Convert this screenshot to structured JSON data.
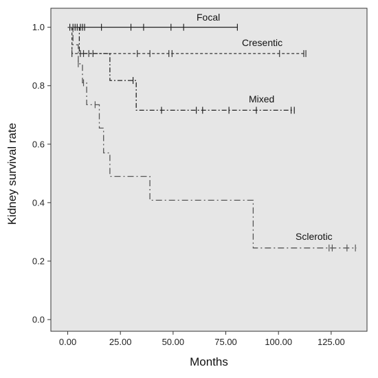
{
  "chart_data": {
    "type": "line",
    "xlabel": "Months",
    "ylabel": "Kidney survival rate",
    "xlim": [
      -8,
      142
    ],
    "ylim": [
      -0.04,
      1.065
    ],
    "xticks": [
      0,
      25,
      50,
      75,
      100,
      125
    ],
    "xtick_labels": [
      "0.00",
      "25.00",
      "50.00",
      "75.00",
      "100.00",
      "125.00"
    ],
    "yticks": [
      0,
      0.2,
      0.4,
      0.6,
      0.8,
      1.0
    ],
    "ytick_labels": [
      "0.0",
      "0.2",
      "0.4",
      "0.6",
      "0.8",
      "1.0"
    ],
    "grid": false,
    "background_color": "#e6e6e6",
    "series": [
      {
        "name": "Focal",
        "color": "#222222",
        "dash": "none",
        "steps": [
          [
            0,
            1.0
          ],
          [
            80.5,
            1.0
          ]
        ],
        "censored": [
          1,
          2.5,
          3.5,
          4.5,
          6,
          7,
          8,
          16,
          30,
          36,
          49,
          55,
          80.5
        ],
        "censored_y": 1.0
      },
      {
        "name": "Cresentic",
        "color": "#333333",
        "dash": "4,3",
        "steps": [
          [
            0,
            1.0
          ],
          [
            2,
            1.0
          ],
          [
            2,
            0.91
          ],
          [
            113,
            0.91
          ]
        ],
        "censored": [
          2,
          6,
          7.5,
          10,
          12,
          33,
          39,
          48,
          49.5,
          100.5,
          112,
          113
        ],
        "censored_y": 0.91
      },
      {
        "name": "Mixed",
        "color": "#222222",
        "dash": "7,3,2,3",
        "steps": [
          [
            0,
            1.0
          ],
          [
            5.5,
            1.0
          ],
          [
            5.5,
            0.91
          ],
          [
            20,
            0.91
          ],
          [
            20,
            0.818
          ],
          [
            32.5,
            0.818
          ],
          [
            32.5,
            0.716
          ],
          [
            107.5,
            0.716
          ]
        ],
        "censored": [
          31,
          44.5,
          61,
          64,
          76.5,
          89.5,
          106,
          107.5
        ],
        "censored_y_by_index": [
          0.818,
          0.716,
          0.716,
          0.716,
          0.716,
          0.716,
          0.716,
          0.716
        ]
      },
      {
        "name": "Sclerotic",
        "color": "#555555",
        "dash": "9,4,2,4",
        "steps": [
          [
            0,
            1.0
          ],
          [
            2.5,
            1.0
          ],
          [
            2.5,
            0.94
          ],
          [
            5,
            0.94
          ],
          [
            5,
            0.875
          ],
          [
            7,
            0.875
          ],
          [
            7,
            0.81
          ],
          [
            9,
            0.81
          ],
          [
            9,
            0.735
          ],
          [
            15,
            0.735
          ],
          [
            15,
            0.655
          ],
          [
            17,
            0.655
          ],
          [
            17,
            0.57
          ],
          [
            20,
            0.57
          ],
          [
            20,
            0.49
          ],
          [
            39,
            0.49
          ],
          [
            39,
            0.408
          ],
          [
            88,
            0.408
          ],
          [
            88,
            0.245
          ],
          [
            137,
            0.245
          ]
        ],
        "censored": [
          5,
          7.5,
          13,
          124,
          125.5,
          132.5,
          136.5
        ],
        "censored_y_by_index": [
          0.875,
          0.81,
          0.735,
          0.245,
          0.245,
          0.245,
          0.245
        ]
      }
    ]
  }
}
